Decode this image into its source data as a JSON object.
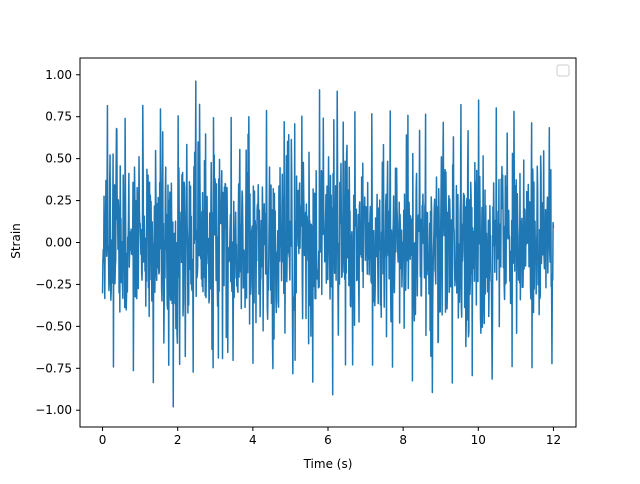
{
  "chart_data": {
    "type": "line",
    "title": "",
    "xlabel": "Time (s)",
    "ylabel": "Strain",
    "xlim": [
      -0.6,
      12.6
    ],
    "ylim": [
      -1.1,
      1.1
    ],
    "x_ticks": [
      0,
      2,
      4,
      6,
      8,
      10,
      12
    ],
    "x_tick_labels": [
      "0",
      "2",
      "4",
      "6",
      "8",
      "10",
      "12"
    ],
    "y_ticks": [
      -1.0,
      -0.75,
      -0.5,
      -0.25,
      0.0,
      0.25,
      0.5,
      0.75,
      1.0
    ],
    "y_tick_labels": [
      "−1.00",
      "−0.75",
      "−0.50",
      "−0.25",
      "0.00",
      "0.25",
      "0.50",
      "0.75",
      "1.00"
    ],
    "grid": false,
    "legend": {
      "placement": "top-right",
      "entries": []
    },
    "series": [
      {
        "color": "#1f77b4",
        "x_range": [
          0,
          12
        ],
        "sample_count": 1200,
        "approx_std": 0.28,
        "approx_min": -1.02,
        "approx_max": 1.0,
        "envelope_x": [
          0,
          0.5,
          1,
          1.5,
          2,
          2.5,
          3,
          3.5,
          4,
          4.5,
          5,
          5.5,
          6,
          6.5,
          7,
          7.5,
          8,
          8.5,
          9,
          9.5,
          10,
          10.5,
          11,
          11.5,
          12
        ],
        "envelope_upper": [
          0.85,
          0.72,
          0.82,
          0.8,
          0.75,
          0.97,
          0.72,
          0.75,
          0.75,
          0.8,
          0.68,
          0.8,
          1.0,
          0.8,
          0.75,
          0.8,
          0.75,
          0.78,
          0.7,
          0.82,
          0.85,
          0.8,
          0.78,
          0.7,
          0.68
        ],
        "envelope_lower": [
          -0.8,
          -0.7,
          -0.8,
          -0.85,
          -1.02,
          -0.72,
          -0.75,
          -0.7,
          -0.72,
          -0.75,
          -0.78,
          -0.8,
          -0.97,
          -0.72,
          -0.75,
          -0.7,
          -0.8,
          -0.85,
          -0.93,
          -0.78,
          -0.8,
          -0.82,
          -0.72,
          -0.75,
          -0.72
        ]
      }
    ]
  }
}
